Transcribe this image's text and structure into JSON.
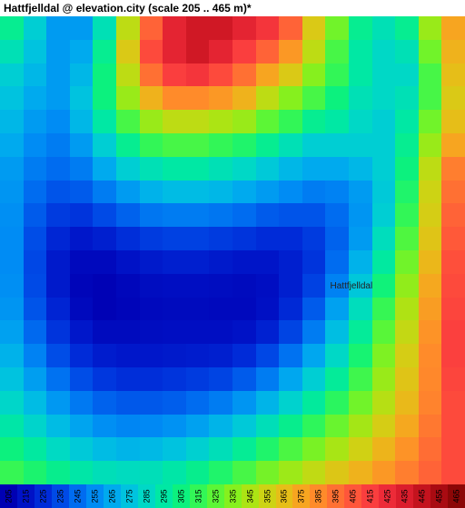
{
  "title": "Hattfjelldal @ elevation.city (scale 205 .. 465 m)*",
  "heatmap": {
    "type": "heatmap",
    "rows": 20,
    "cols": 20,
    "zlim": [
      205,
      465
    ],
    "place_label": {
      "text": "Hattfjelldal",
      "row": 11,
      "col": 14
    },
    "background_color": "#ffffff",
    "cell_opacity": 1.0,
    "grid": [
      [
        300,
        280,
        260,
        260,
        290,
        350,
        400,
        430,
        440,
        440,
        430,
        420,
        400,
        360,
        330,
        300,
        290,
        300,
        340,
        375
      ],
      [
        290,
        275,
        260,
        265,
        300,
        360,
        410,
        430,
        440,
        430,
        415,
        400,
        380,
        350,
        320,
        295,
        285,
        290,
        330,
        370
      ],
      [
        280,
        270,
        260,
        270,
        305,
        350,
        395,
        415,
        420,
        410,
        395,
        375,
        360,
        335,
        315,
        295,
        285,
        285,
        320,
        365
      ],
      [
        275,
        265,
        260,
        275,
        305,
        340,
        370,
        385,
        385,
        380,
        370,
        350,
        335,
        320,
        305,
        290,
        285,
        290,
        320,
        360
      ],
      [
        270,
        260,
        255,
        270,
        295,
        320,
        340,
        350,
        350,
        345,
        340,
        325,
        315,
        300,
        295,
        285,
        280,
        295,
        330,
        365
      ],
      [
        265,
        255,
        250,
        260,
        280,
        300,
        315,
        320,
        320,
        315,
        310,
        300,
        290,
        280,
        280,
        280,
        280,
        300,
        340,
        375
      ],
      [
        260,
        250,
        245,
        250,
        265,
        280,
        290,
        295,
        295,
        290,
        285,
        278,
        270,
        265,
        265,
        270,
        280,
        305,
        350,
        390
      ],
      [
        258,
        245,
        238,
        240,
        250,
        260,
        268,
        272,
        272,
        270,
        265,
        260,
        255,
        250,
        252,
        260,
        278,
        310,
        355,
        395
      ],
      [
        256,
        240,
        230,
        228,
        235,
        242,
        248,
        250,
        250,
        248,
        245,
        240,
        238,
        238,
        245,
        258,
        280,
        315,
        358,
        400
      ],
      [
        255,
        236,
        223,
        217,
        220,
        226,
        230,
        232,
        232,
        230,
        228,
        225,
        225,
        230,
        242,
        260,
        288,
        322,
        362,
        404
      ],
      [
        255,
        234,
        218,
        210,
        210,
        215,
        218,
        220,
        220,
        218,
        216,
        216,
        220,
        228,
        245,
        268,
        296,
        330,
        368,
        408
      ],
      [
        256,
        235,
        218,
        208,
        206,
        209,
        212,
        213,
        213,
        212,
        211,
        213,
        220,
        232,
        252,
        277,
        306,
        338,
        374,
        410
      ],
      [
        258,
        238,
        222,
        210,
        206,
        208,
        210,
        211,
        211,
        210,
        210,
        214,
        224,
        240,
        262,
        288,
        316,
        346,
        378,
        412
      ],
      [
        262,
        244,
        228,
        217,
        211,
        211,
        212,
        213,
        213,
        213,
        215,
        221,
        233,
        250,
        273,
        298,
        324,
        352,
        382,
        414
      ],
      [
        268,
        252,
        236,
        225,
        219,
        217,
        217,
        218,
        219,
        220,
        225,
        234,
        247,
        264,
        285,
        308,
        333,
        358,
        385,
        414
      ],
      [
        275,
        261,
        247,
        236,
        229,
        226,
        226,
        228,
        230,
        233,
        240,
        250,
        264,
        280,
        298,
        318,
        340,
        362,
        386,
        412
      ],
      [
        284,
        272,
        259,
        249,
        242,
        239,
        239,
        241,
        245,
        250,
        258,
        269,
        282,
        297,
        313,
        330,
        348,
        367,
        388,
        410
      ],
      [
        294,
        283,
        272,
        263,
        256,
        253,
        254,
        257,
        262,
        269,
        278,
        289,
        301,
        314,
        328,
        343,
        358,
        374,
        392,
        410
      ],
      [
        305,
        296,
        286,
        278,
        272,
        269,
        271,
        275,
        281,
        289,
        299,
        310,
        321,
        332,
        344,
        356,
        369,
        382,
        396,
        410
      ],
      [
        316,
        309,
        301,
        294,
        289,
        287,
        289,
        294,
        301,
        310,
        320,
        331,
        341,
        351,
        361,
        370,
        380,
        390,
        400,
        410
      ]
    ]
  },
  "palette": {
    "stops": [
      205,
      215,
      225,
      235,
      245,
      255,
      265,
      275,
      285,
      295,
      305,
      315,
      325,
      335,
      345,
      355,
      365,
      375,
      385,
      395,
      405,
      415,
      425,
      435,
      445,
      455,
      465
    ],
    "colors": [
      "#0000b3",
      "#0012c6",
      "#002bd8",
      "#004ae6",
      "#006cf0",
      "#008cf4",
      "#00aaee",
      "#00c3df",
      "#00d8c6",
      "#00e8a4",
      "#0cf17e",
      "#32f657",
      "#5cf636",
      "#86f01e",
      "#ace414",
      "#cdd314",
      "#e6be18",
      "#f7a520",
      "#ff8b2a",
      "#ff7033",
      "#ff563a",
      "#fa3e3e",
      "#ed2b38",
      "#db1d2c",
      "#c4131e",
      "#a90b12",
      "#8c0707"
    ]
  },
  "legend": {
    "labels": [
      "205",
      "215",
      "225",
      "235",
      "245",
      "255",
      "265",
      "275",
      "285",
      "295",
      "305",
      "315",
      "325",
      "335",
      "345",
      "355",
      "365",
      "375",
      "385",
      "395",
      "405",
      "415",
      "425",
      "435",
      "445",
      "455",
      "465"
    ],
    "label_fontsize": 9,
    "label_rotation": -90
  }
}
